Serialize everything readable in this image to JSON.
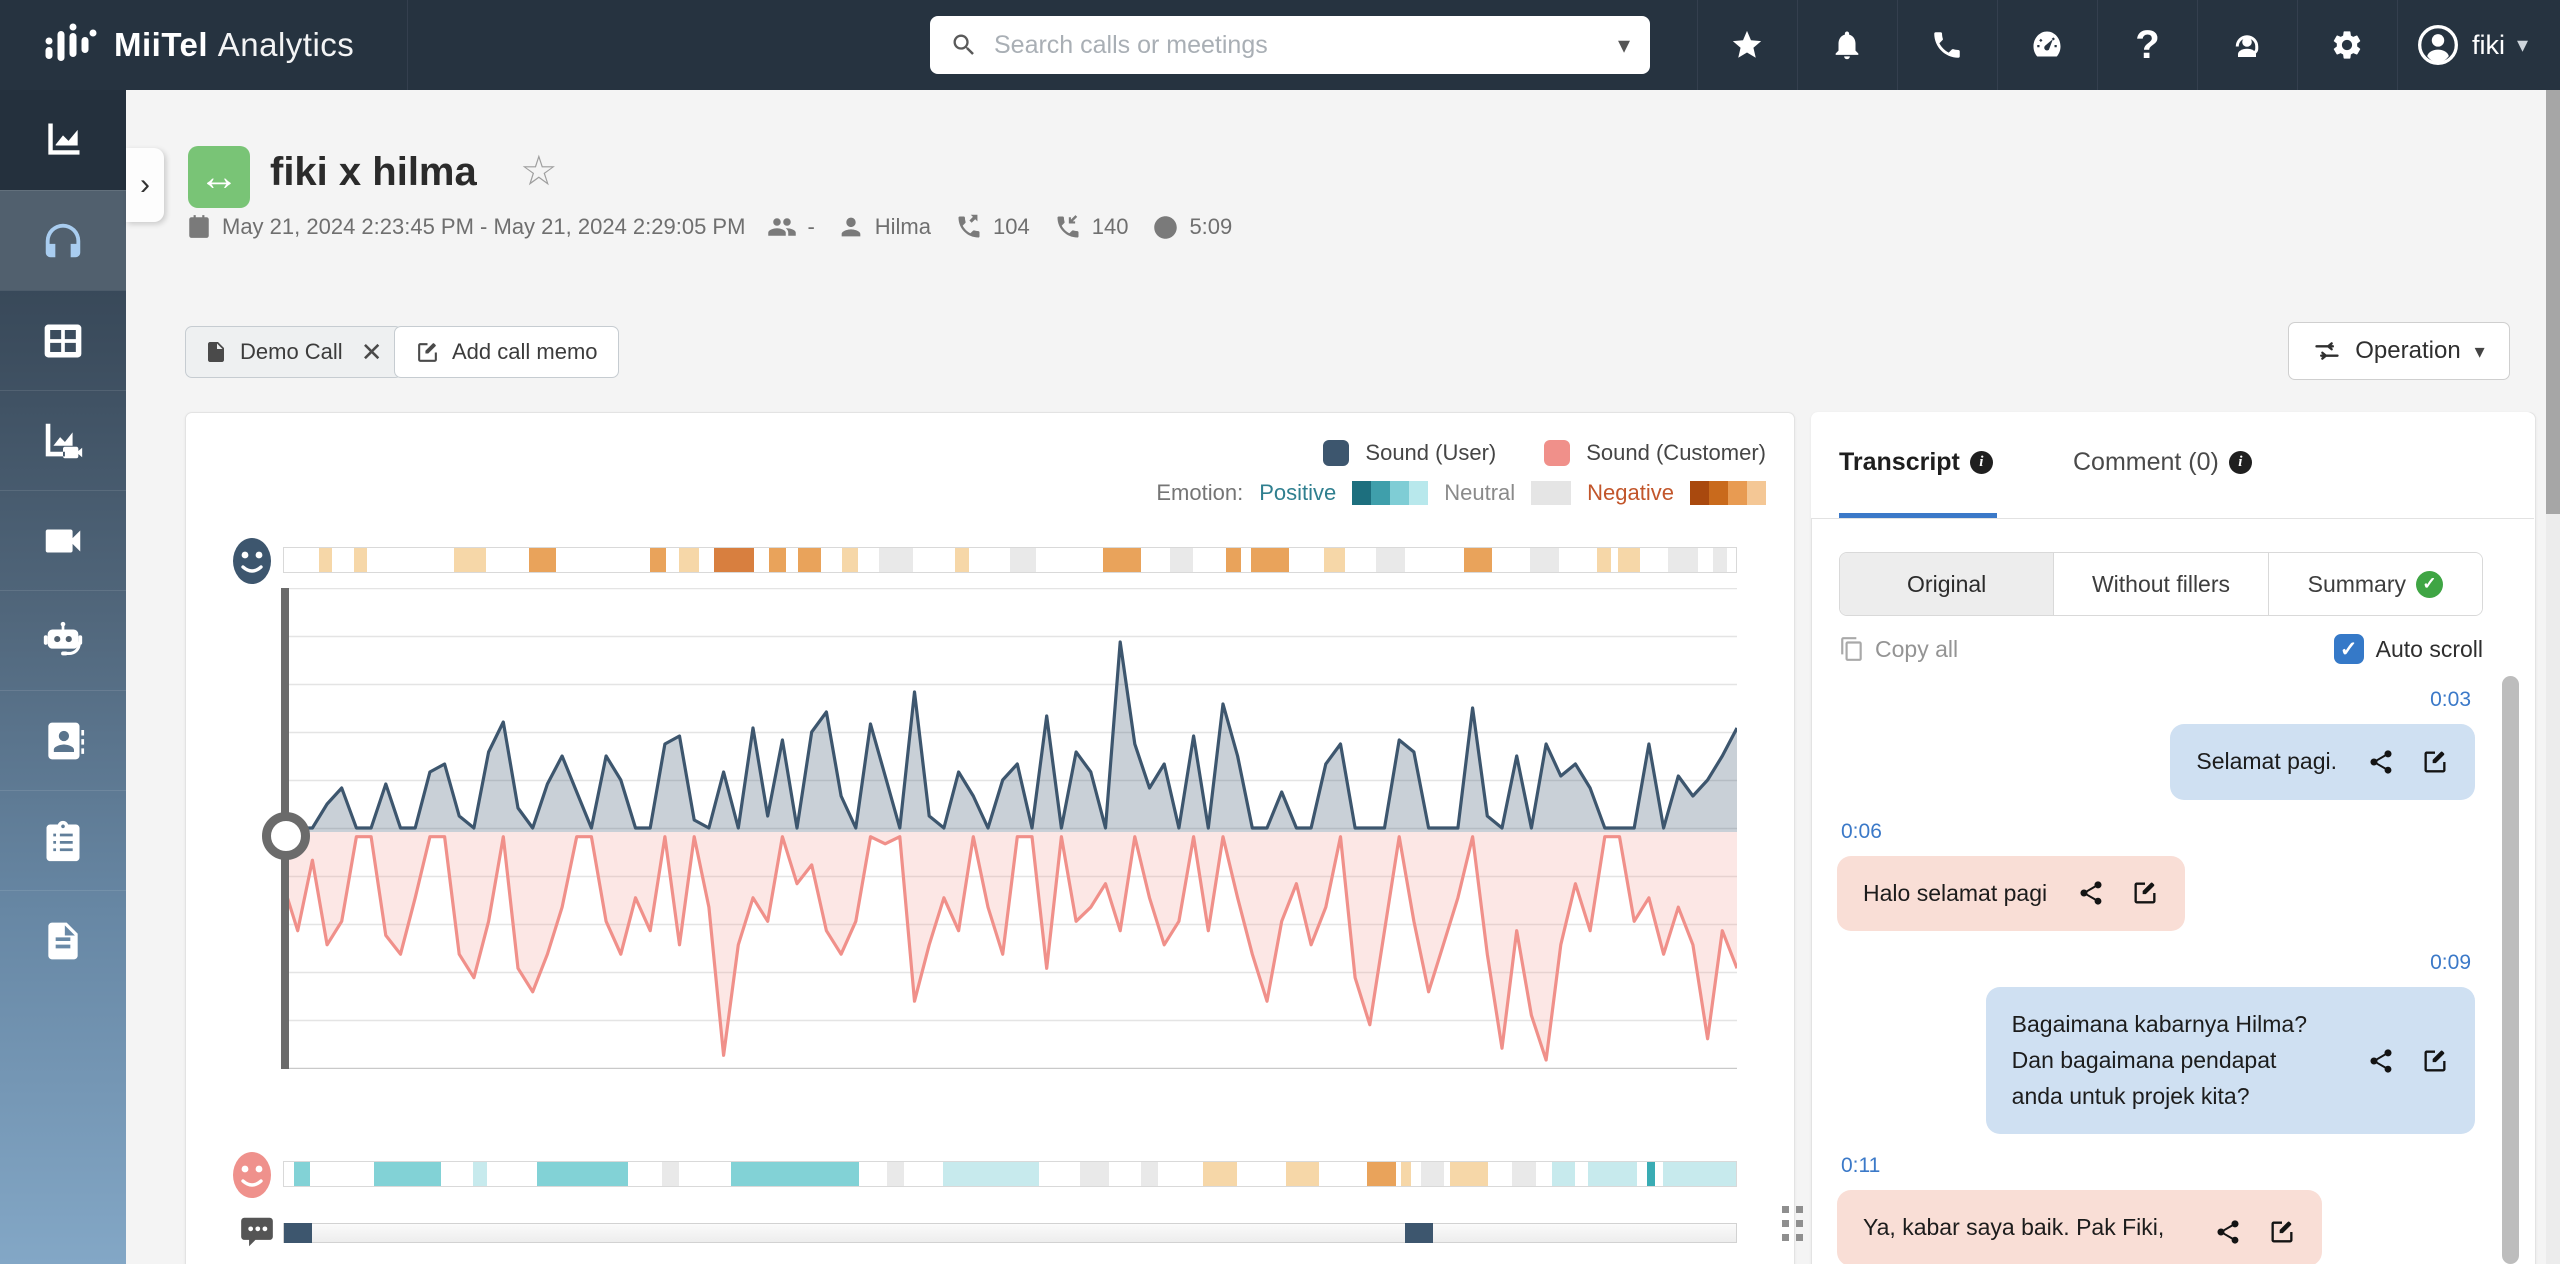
{
  "colors": {
    "navbar_bg": "#263340",
    "accent_blue": "#3b79c8",
    "user_series": "#3d566e",
    "customer_series": "#f0908a",
    "positive_teal": "#2f7f8f",
    "negative_orange": "#c2562b",
    "tag_green": "#79c476",
    "bubble_user": "#cfe0f2",
    "bubble_customer": "#f9ded6"
  },
  "navbar": {
    "brand_primary": "MiiTel",
    "brand_secondary": "Analytics",
    "search_placeholder": "Search calls or meetings",
    "user_name": "fiki"
  },
  "header": {
    "title": "fiki x hilma",
    "date_range": "May 21, 2024 2:23:45 PM - May 21, 2024 2:29:05 PM",
    "participants_placeholder": "-",
    "agent_name": "Hilma",
    "talk_metric_outgoing": "104",
    "talk_metric_incoming": "140",
    "duration": "5:09"
  },
  "toolbar": {
    "tag_label": "Demo Call",
    "add_memo_label": "Add call memo",
    "operation_label": "Operation"
  },
  "chart_legend": {
    "sound_user": "Sound (User)",
    "sound_customer": "Sound (Customer)",
    "emotion_label": "Emotion:",
    "positive": "Positive",
    "neutral": "Neutral",
    "negative": "Negative"
  },
  "chart_data": {
    "type": "area",
    "title": "Voice activity waveform (mirrored): Sound (User) above baseline, Sound (Customer) below",
    "x_range": "0:00 - 5:09 call time",
    "ylim": [
      -100,
      100
    ],
    "grid": true,
    "playhead_pct": 0,
    "series": [
      {
        "name": "Sound (User)",
        "color": "#3d566e",
        "values": [
          5,
          2,
          2,
          14,
          22,
          2,
          2,
          24,
          2,
          2,
          30,
          34,
          8,
          2,
          40,
          55,
          12,
          2,
          24,
          38,
          20,
          2,
          38,
          26,
          2,
          2,
          44,
          48,
          6,
          2,
          30,
          2,
          52,
          8,
          46,
          2,
          50,
          60,
          18,
          2,
          54,
          28,
          2,
          70,
          8,
          2,
          30,
          18,
          2,
          26,
          34,
          2,
          58,
          2,
          40,
          30,
          2,
          95,
          44,
          22,
          34,
          2,
          48,
          2,
          64,
          38,
          2,
          2,
          20,
          2,
          2,
          34,
          44,
          2,
          2,
          2,
          46,
          40,
          2,
          2,
          2,
          62,
          8,
          2,
          38,
          2,
          44,
          28,
          34,
          22,
          2,
          2,
          2,
          44,
          2,
          28,
          18,
          26,
          38,
          52
        ]
      },
      {
        "name": "Sound (Customer)",
        "color": "#f0908a",
        "values": [
          22,
          42,
          12,
          48,
          38,
          2,
          2,
          44,
          52,
          28,
          2,
          2,
          52,
          62,
          38,
          2,
          58,
          68,
          52,
          32,
          2,
          2,
          38,
          52,
          28,
          42,
          2,
          48,
          2,
          32,
          95,
          48,
          28,
          38,
          2,
          22,
          14,
          42,
          52,
          38,
          2,
          5,
          2,
          72,
          48,
          28,
          42,
          2,
          32,
          52,
          2,
          2,
          58,
          2,
          38,
          32,
          22,
          42,
          2,
          28,
          48,
          38,
          2,
          42,
          2,
          28,
          52,
          72,
          38,
          22,
          48,
          32,
          2,
          62,
          82,
          42,
          2,
          38,
          68,
          48,
          28,
          2,
          52,
          92,
          42,
          78,
          97,
          48,
          22,
          42,
          2,
          2,
          38,
          28,
          52,
          32,
          48,
          88,
          42,
          58
        ]
      }
    ],
    "emotion_palette": {
      "o1": "#f6d7a8",
      "o2": "#e9a35b",
      "o3": "#d87f3f",
      "t1": "#c7eaed",
      "t2": "#82d2d6",
      "t3": "#3aacb4",
      "gray": "#e9e9e9"
    },
    "emotion_strip_user": [
      {
        "x": 2.4,
        "w": 0.9,
        "c": "o1"
      },
      {
        "x": 4.8,
        "w": 0.9,
        "c": "o1"
      },
      {
        "x": 11.7,
        "w": 2.2,
        "c": "o1"
      },
      {
        "x": 16.9,
        "w": 1.8,
        "c": "o2"
      },
      {
        "x": 25.2,
        "w": 1.1,
        "c": "o2"
      },
      {
        "x": 27.2,
        "w": 1.4,
        "c": "o1"
      },
      {
        "x": 29.6,
        "w": 2.8,
        "c": "o3"
      },
      {
        "x": 33.4,
        "w": 1.2,
        "c": "o2"
      },
      {
        "x": 35.4,
        "w": 1.6,
        "c": "o2"
      },
      {
        "x": 38.4,
        "w": 1.1,
        "c": "o1"
      },
      {
        "x": 41.0,
        "w": 2.3,
        "c": "gray"
      },
      {
        "x": 46.2,
        "w": 1.0,
        "c": "o1"
      },
      {
        "x": 50.0,
        "w": 1.8,
        "c": "gray"
      },
      {
        "x": 56.4,
        "w": 2.6,
        "c": "o2"
      },
      {
        "x": 61.0,
        "w": 1.6,
        "c": "gray"
      },
      {
        "x": 64.9,
        "w": 1.0,
        "c": "o2"
      },
      {
        "x": 66.6,
        "w": 2.6,
        "c": "o2"
      },
      {
        "x": 71.6,
        "w": 1.5,
        "c": "o1"
      },
      {
        "x": 75.2,
        "w": 2.0,
        "c": "gray"
      },
      {
        "x": 81.3,
        "w": 1.9,
        "c": "o2"
      },
      {
        "x": 85.8,
        "w": 2.0,
        "c": "gray"
      },
      {
        "x": 90.4,
        "w": 1.0,
        "c": "o1"
      },
      {
        "x": 91.9,
        "w": 1.5,
        "c": "o1"
      },
      {
        "x": 95.3,
        "w": 2.1,
        "c": "gray"
      },
      {
        "x": 98.4,
        "w": 1.0,
        "c": "gray"
      }
    ],
    "emotion_strip_customer": [
      {
        "x": 0.7,
        "w": 1.1,
        "c": "t2"
      },
      {
        "x": 6.2,
        "w": 4.6,
        "c": "t2"
      },
      {
        "x": 13.0,
        "w": 1.0,
        "c": "t1"
      },
      {
        "x": 17.4,
        "w": 6.3,
        "c": "t2"
      },
      {
        "x": 26.0,
        "w": 1.2,
        "c": "gray"
      },
      {
        "x": 30.8,
        "w": 8.8,
        "c": "t2"
      },
      {
        "x": 41.5,
        "w": 1.2,
        "c": "gray"
      },
      {
        "x": 45.4,
        "w": 6.6,
        "c": "t1"
      },
      {
        "x": 54.8,
        "w": 2.0,
        "c": "gray"
      },
      {
        "x": 59.0,
        "w": 1.2,
        "c": "gray"
      },
      {
        "x": 63.3,
        "w": 2.3,
        "c": "o1"
      },
      {
        "x": 69.0,
        "w": 2.3,
        "c": "o1"
      },
      {
        "x": 74.6,
        "w": 2.0,
        "c": "o2"
      },
      {
        "x": 76.9,
        "w": 0.7,
        "c": "o1"
      },
      {
        "x": 78.3,
        "w": 1.6,
        "c": "gray"
      },
      {
        "x": 80.3,
        "w": 2.6,
        "c": "o1"
      },
      {
        "x": 84.6,
        "w": 1.6,
        "c": "gray"
      },
      {
        "x": 87.3,
        "w": 1.6,
        "c": "t1"
      },
      {
        "x": 89.8,
        "w": 3.4,
        "c": "t1"
      },
      {
        "x": 93.9,
        "w": 0.5,
        "c": "t3"
      },
      {
        "x": 95.0,
        "w": 5.0,
        "c": "t1"
      }
    ],
    "comment_markers_pct": [
      0,
      77.2
    ]
  },
  "transcript": {
    "tab_transcript": "Transcript",
    "tab_comment": "Comment (0)",
    "subtab_original": "Original",
    "subtab_without_fillers": "Without fillers",
    "subtab_summary": "Summary",
    "copy_all_label": "Copy all",
    "auto_scroll_label": "Auto scroll",
    "auto_scroll_checked": true,
    "messages": [
      {
        "time": "0:03",
        "side": "right",
        "speaker": "user",
        "text": "Selamat pagi."
      },
      {
        "time": "0:06",
        "side": "left",
        "speaker": "customer",
        "text": "Halo selamat pagi"
      },
      {
        "time": "0:09",
        "side": "right",
        "speaker": "user",
        "text": "Bagaimana kabarnya Hilma?\nDan bagaimana pendapat\nanda untuk projek kita?"
      },
      {
        "time": "0:11",
        "side": "left",
        "speaker": "customer",
        "text": "Ya, kabar saya baik. Pak Fiki,"
      }
    ]
  }
}
